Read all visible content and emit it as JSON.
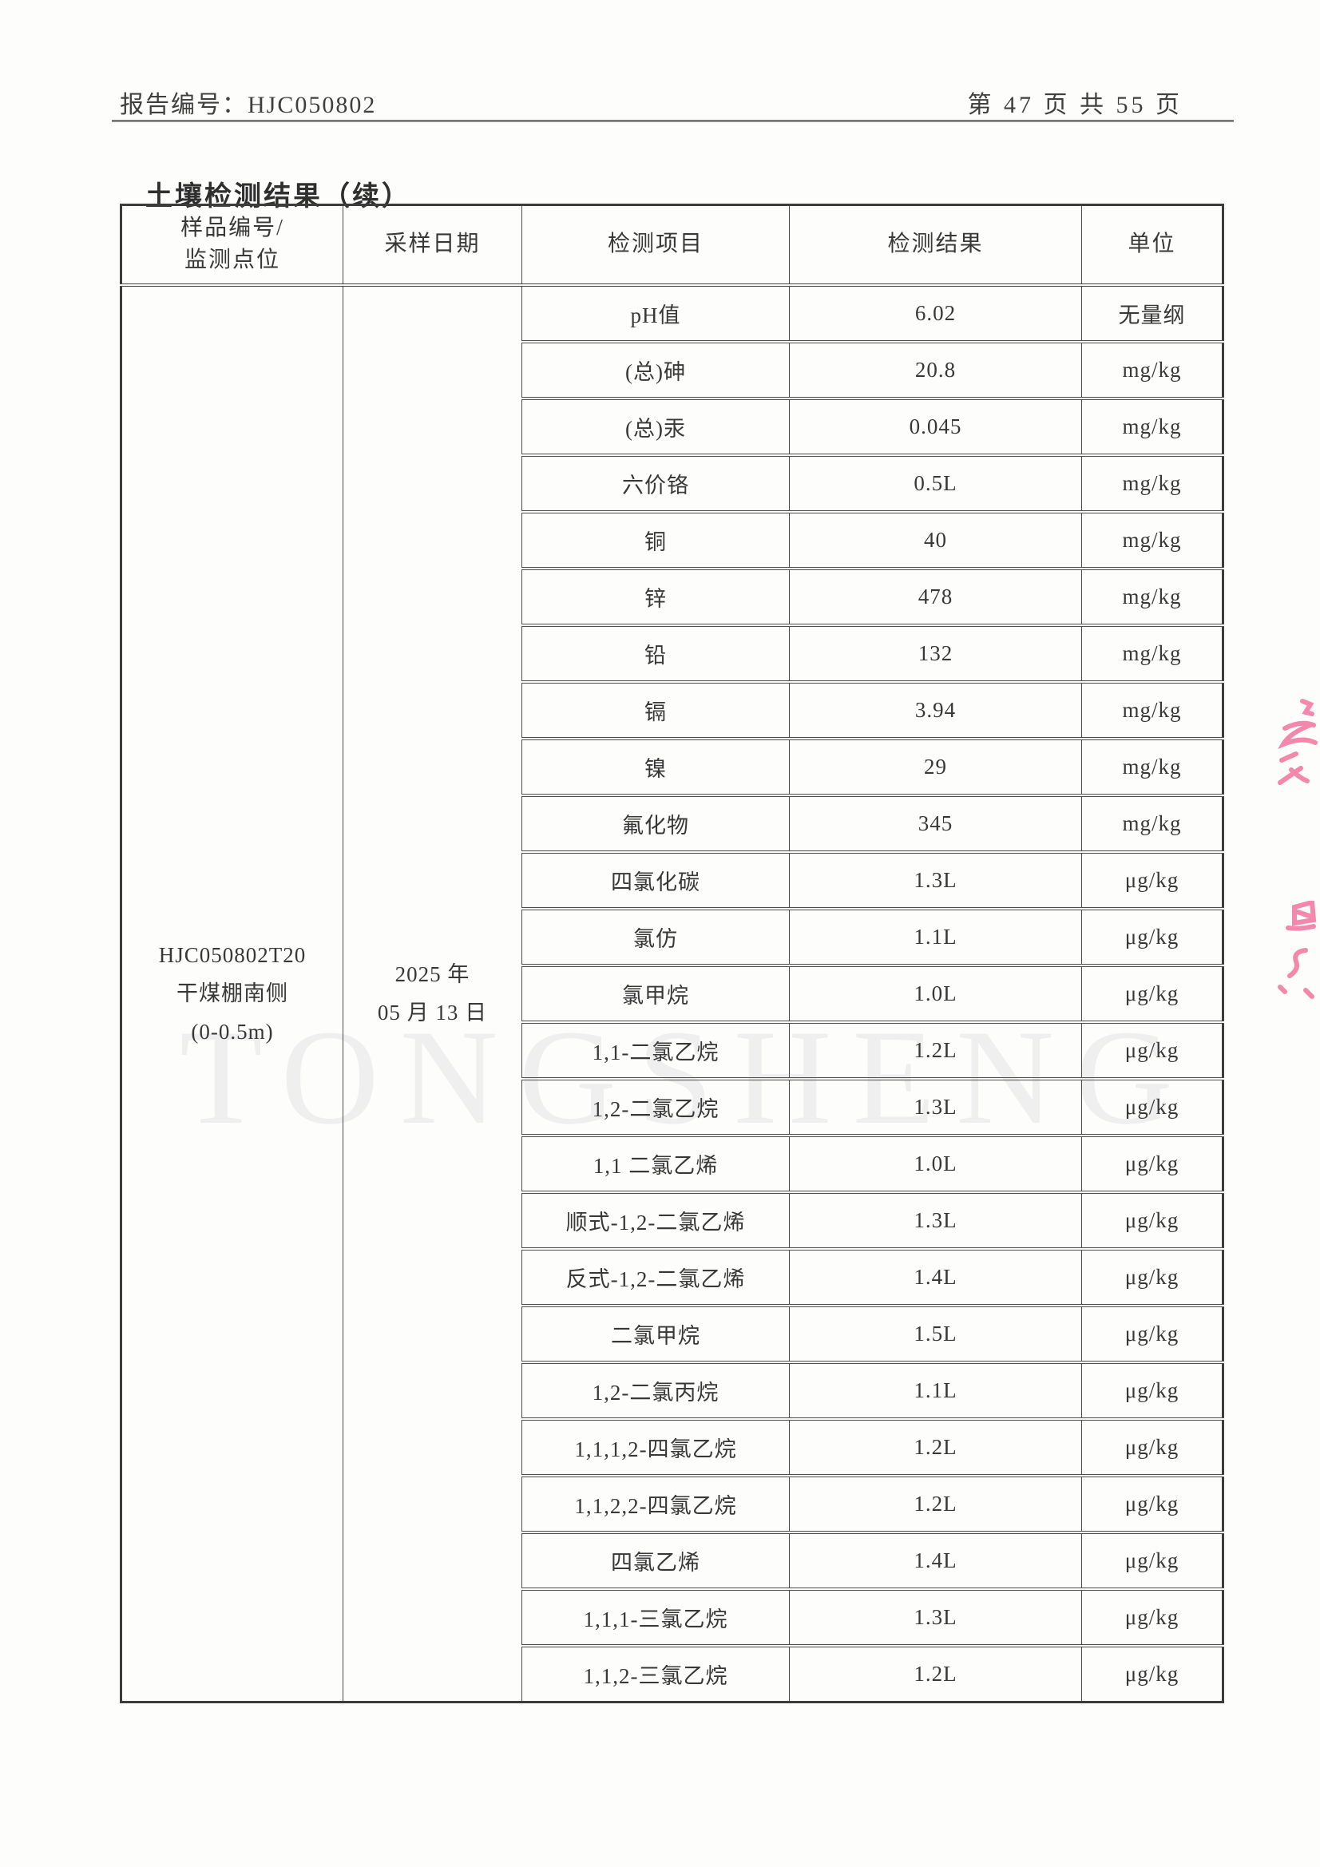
{
  "page_header": {
    "report_label": "报告编号：HJC050802",
    "page_label": "第 47 页 共 55 页"
  },
  "title": "土壤检测结果（续）",
  "watermark": "TONGSHENG",
  "marks_color": "#f2739f",
  "table": {
    "headers": [
      "样品编号/\n监测点位",
      "采样日期",
      "检测项目",
      "检测结果",
      "单位"
    ],
    "sample_cell": "HJC050802T20\n干煤棚南侧\n(0-0.5m)",
    "date_cell": "2025 年\n05 月 13 日",
    "rows": [
      {
        "item": "pH值",
        "result": "6.02",
        "unit": "无量纲"
      },
      {
        "item": "(总)砷",
        "result": "20.8",
        "unit": "mg/kg"
      },
      {
        "item": "(总)汞",
        "result": "0.045",
        "unit": "mg/kg"
      },
      {
        "item": "六价铬",
        "result": "0.5L",
        "unit": "mg/kg"
      },
      {
        "item": "铜",
        "result": "40",
        "unit": "mg/kg"
      },
      {
        "item": "锌",
        "result": "478",
        "unit": "mg/kg"
      },
      {
        "item": "铅",
        "result": "132",
        "unit": "mg/kg"
      },
      {
        "item": "镉",
        "result": "3.94",
        "unit": "mg/kg"
      },
      {
        "item": "镍",
        "result": "29",
        "unit": "mg/kg"
      },
      {
        "item": "氟化物",
        "result": "345",
        "unit": "mg/kg"
      },
      {
        "item": "四氯化碳",
        "result": "1.3L",
        "unit": "μg/kg"
      },
      {
        "item": "氯仿",
        "result": "1.1L",
        "unit": "μg/kg"
      },
      {
        "item": "氯甲烷",
        "result": "1.0L",
        "unit": "μg/kg"
      },
      {
        "item": "1,1-二氯乙烷",
        "result": "1.2L",
        "unit": "μg/kg"
      },
      {
        "item": "1,2-二氯乙烷",
        "result": "1.3L",
        "unit": "μg/kg"
      },
      {
        "item": "1,1 二氯乙烯",
        "result": "1.0L",
        "unit": "μg/kg"
      },
      {
        "item": "顺式-1,2-二氯乙烯",
        "result": "1.3L",
        "unit": "μg/kg"
      },
      {
        "item": "反式-1,2-二氯乙烯",
        "result": "1.4L",
        "unit": "μg/kg"
      },
      {
        "item": "二氯甲烷",
        "result": "1.5L",
        "unit": "μg/kg"
      },
      {
        "item": "1,2-二氯丙烷",
        "result": "1.1L",
        "unit": "μg/kg"
      },
      {
        "item": "1,1,1,2-四氯乙烷",
        "result": "1.2L",
        "unit": "μg/kg"
      },
      {
        "item": "1,1,2,2-四氯乙烷",
        "result": "1.2L",
        "unit": "μg/kg"
      },
      {
        "item": "四氯乙烯",
        "result": "1.4L",
        "unit": "μg/kg"
      },
      {
        "item": "1,1,1-三氯乙烷",
        "result": "1.3L",
        "unit": "μg/kg"
      },
      {
        "item": "1,1,2-三氯乙烷",
        "result": "1.2L",
        "unit": "μg/kg"
      }
    ]
  }
}
